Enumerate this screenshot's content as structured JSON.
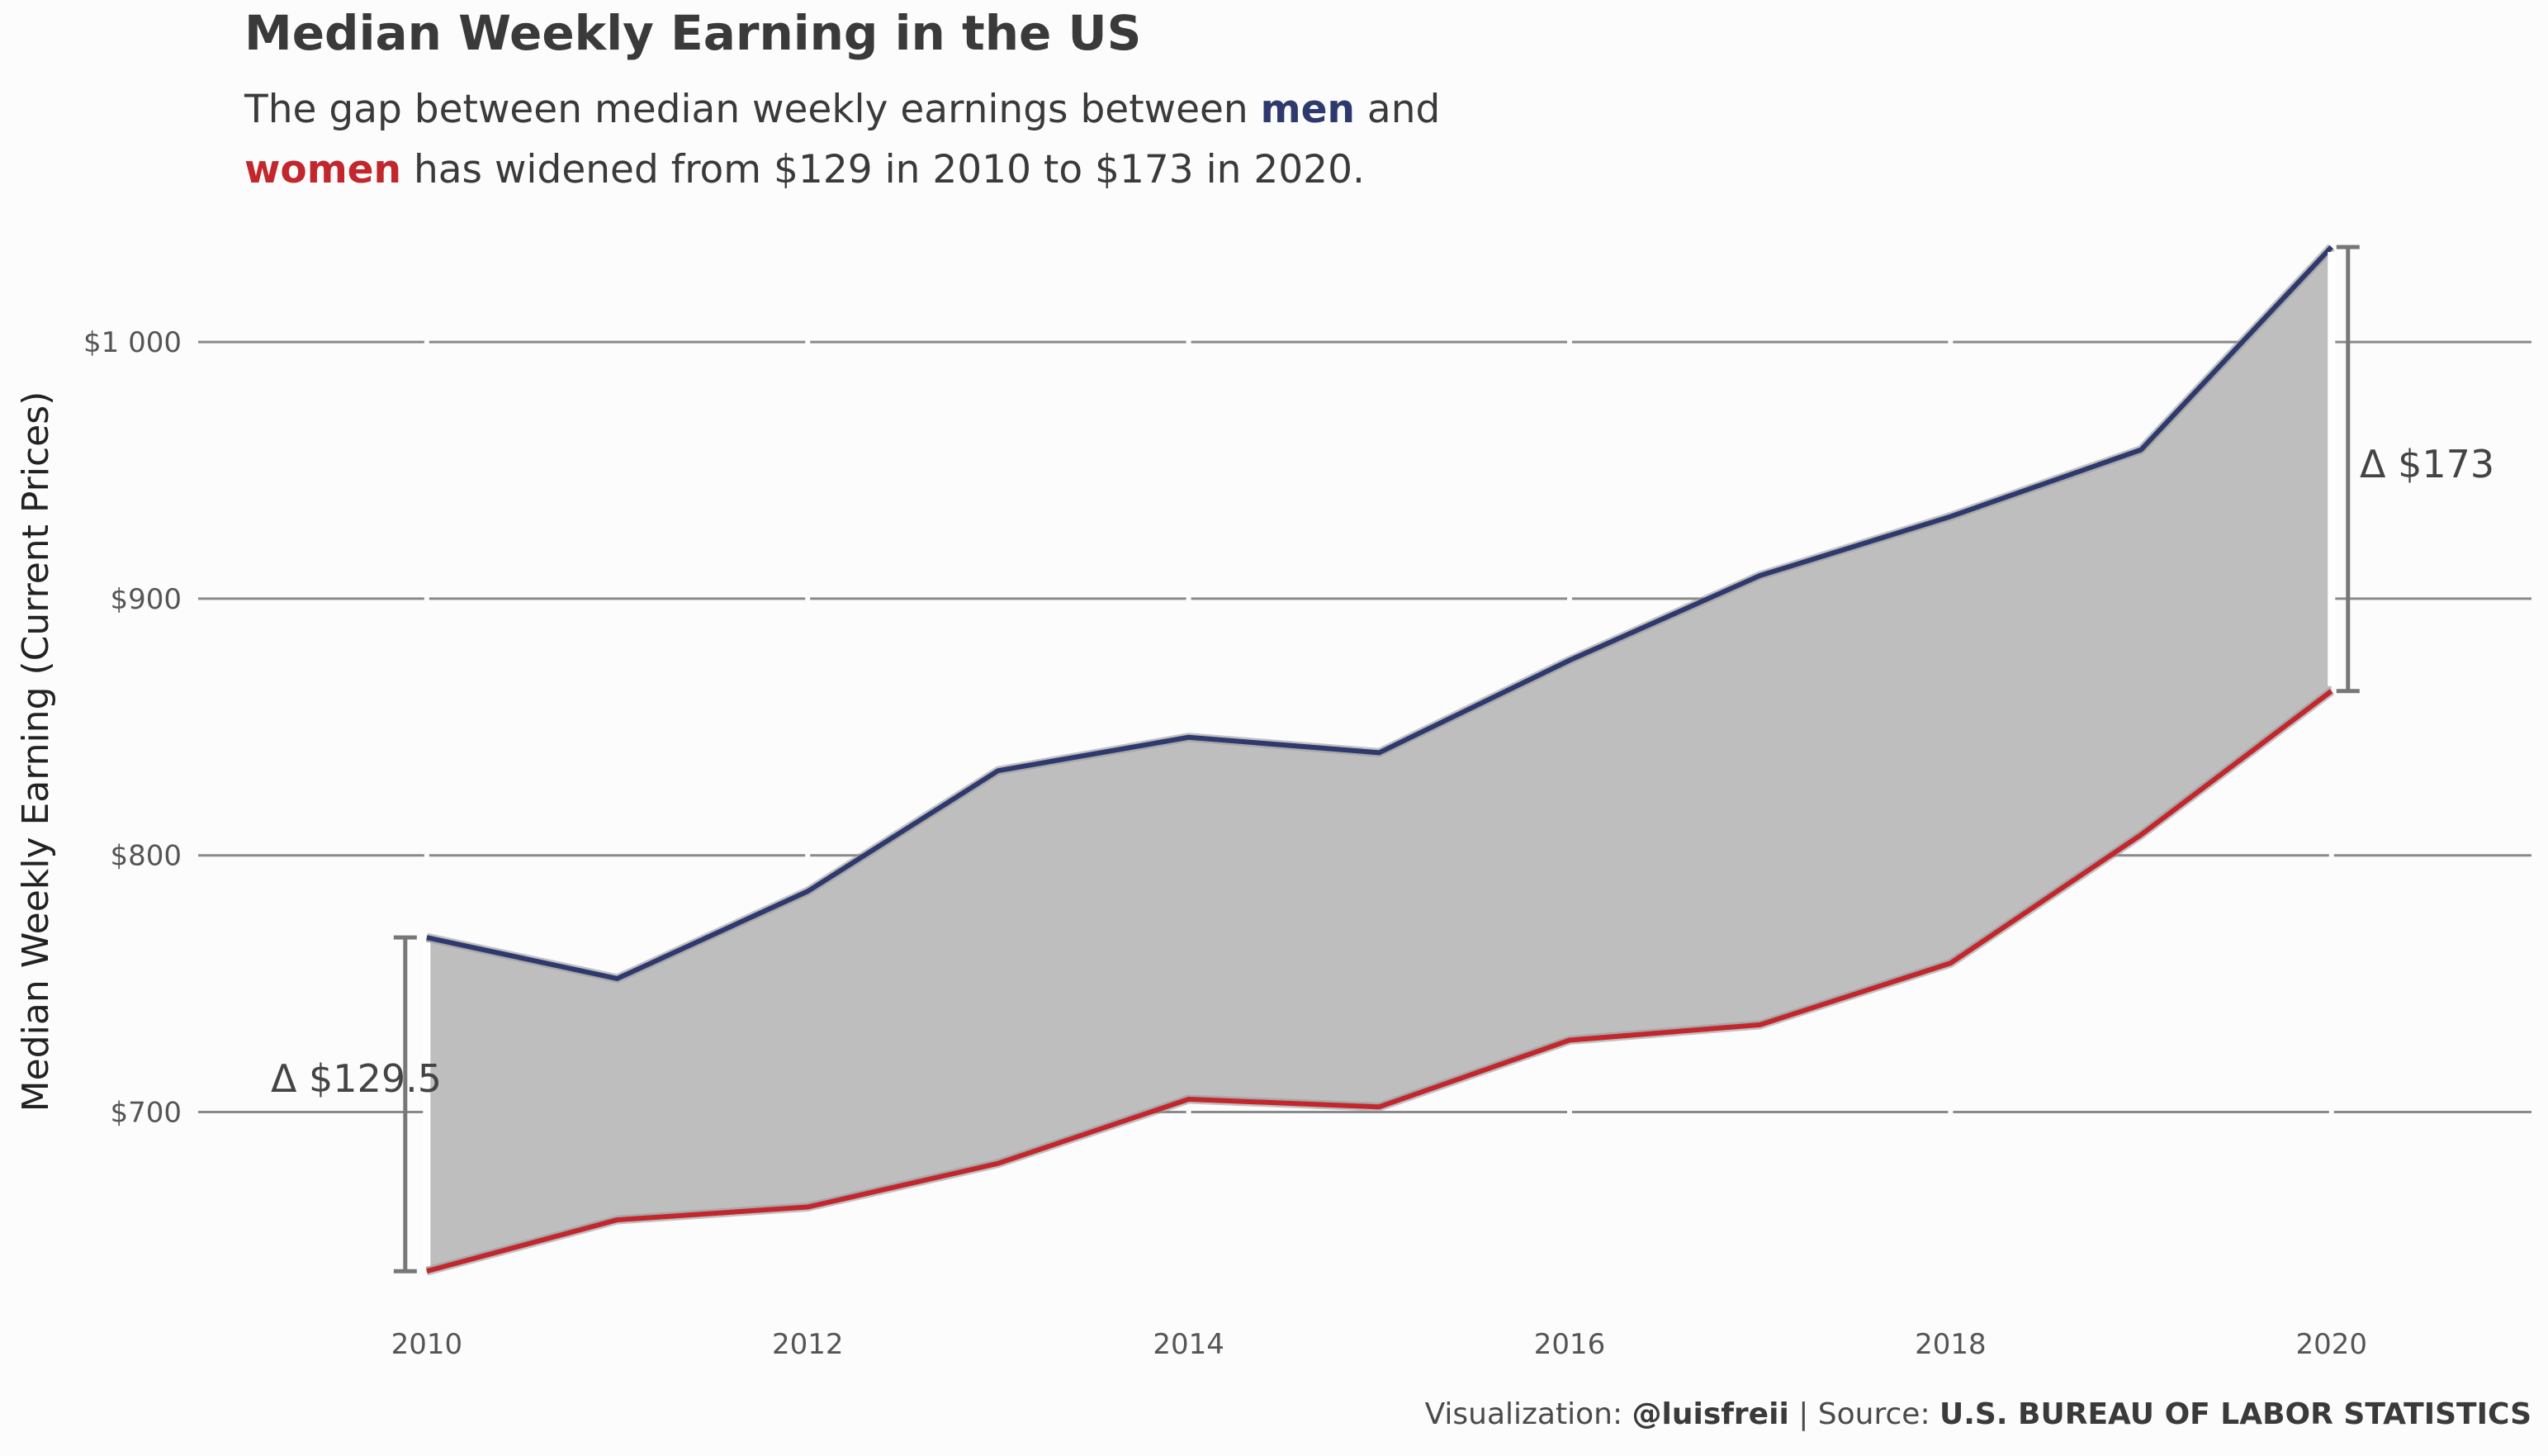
{
  "header": {
    "title": "Median Weekly Earning in the US",
    "subtitle_part1": "The gap between median weekly earnings between ",
    "subtitle_men": "men",
    "subtitle_part2": " and",
    "subtitle_women": "women",
    "subtitle_part3": " has widened from $129 in 2010 to $173 in 2020."
  },
  "caption": {
    "prefix": "Visualization: ",
    "author": "@luisfreii",
    "middle": " | Source: ",
    "source": "U.S. BUREAU OF LABOR STATISTICS"
  },
  "colors": {
    "men": "#2e3a6e",
    "women": "#c1272d",
    "gap_fill": "#bfbebf",
    "grid": "#8a8a8a",
    "bracket": "#777777"
  },
  "chart_data": {
    "type": "area",
    "title": "Median Weekly Earning in the US",
    "xlabel": "",
    "ylabel": "Median Weekly Earning (Current Prices)",
    "x": [
      2010,
      2011,
      2012,
      2013,
      2014,
      2015,
      2016,
      2017,
      2018,
      2019,
      2020
    ],
    "x_ticks": [
      2010,
      2012,
      2014,
      2016,
      2018,
      2020
    ],
    "x_tick_labels": [
      "2010",
      "2012",
      "2014",
      "2016",
      "2018",
      "2020"
    ],
    "y_ticks": [
      700,
      800,
      900,
      1000
    ],
    "y_tick_labels": [
      "$700",
      "$800",
      "$900",
      "$1 000"
    ],
    "xlim": [
      2008.8,
      2021.05
    ],
    "ylim": [
      631,
      1047
    ],
    "grid": true,
    "series": [
      {
        "name": "men",
        "values": [
          768,
          752,
          786,
          833,
          846,
          840,
          876,
          909,
          932,
          958,
          1037
        ]
      },
      {
        "name": "women",
        "values": [
          638,
          658,
          663,
          680,
          705,
          702,
          728,
          734,
          758,
          808,
          864
        ]
      }
    ],
    "annotations": [
      {
        "x": 2010,
        "label": "Δ $129.5",
        "side": "left"
      },
      {
        "x": 2020,
        "label": "Δ $173",
        "side": "right"
      }
    ]
  }
}
